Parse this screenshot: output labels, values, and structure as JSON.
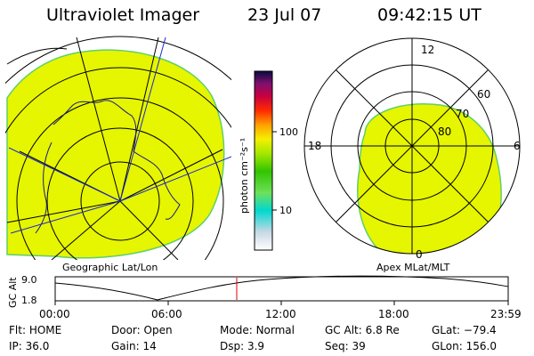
{
  "header": {
    "instrument": "Ultraviolet Imager",
    "date": "23 Jul 07",
    "time": "09:42:15 UT"
  },
  "colors": {
    "aurora_fill": "#e6f500",
    "aurora_edge": "#5ecf6a",
    "grid_dark": "#000000",
    "grid_blue": "#1a2ad0",
    "cursor": "#e00000"
  },
  "colorbar": {
    "ticks": [
      "100",
      "10"
    ],
    "unit": "photon cm⁻²s⁻¹"
  },
  "geo_panel": {
    "label": "Geographic Lat/Lon"
  },
  "apex_panel": {
    "label": "Apex MLat/MLT",
    "mlt_labels": {
      "top": "12",
      "left": "18",
      "right": "6",
      "bottom": "0"
    },
    "mlat_labels": [
      "60",
      "70",
      "80"
    ]
  },
  "timeline": {
    "ylabel": "GC Alt",
    "ytick_high": "9.0",
    "ytick_low": "1.8",
    "xticks": [
      "00:00",
      "06:00",
      "12:00",
      "18:00",
      "23:59"
    ]
  },
  "status": {
    "row1": [
      {
        "key": "Flt:",
        "value": "HOME"
      },
      {
        "key": "Door:",
        "value": "Open"
      },
      {
        "key": "Mode:",
        "value": "Normal"
      },
      {
        "key": "GC Alt:",
        "value": "6.8 Re"
      },
      {
        "key": "GLat:",
        "value": "−79.4"
      }
    ],
    "row2": [
      {
        "key": "IP:",
        "value": "36.0"
      },
      {
        "key": "Gain:",
        "value": "14"
      },
      {
        "key": "Dsp:",
        "value": "3.9"
      },
      {
        "key": "Seq:",
        "value": "39"
      },
      {
        "key": "GLon:",
        "value": "156.0"
      }
    ]
  }
}
